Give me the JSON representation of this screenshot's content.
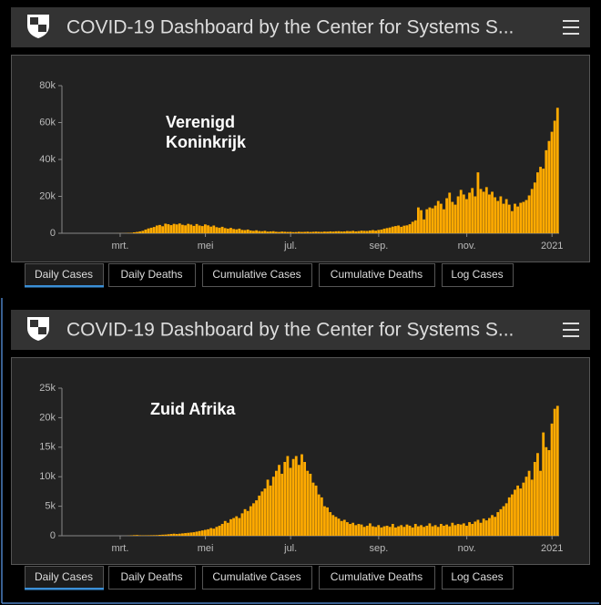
{
  "panels": [
    {
      "header": {
        "title": "COVID-19 Dashboard by the Center for Systems S..."
      },
      "tabs": [
        "Daily Cases",
        "Daily Deaths",
        "Cumulative Cases",
        "Cumulative Deaths",
        "Log Cases"
      ]
    },
    {
      "header": {
        "title": "COVID-19 Dashboard by the Center for Systems S..."
      },
      "tabs": [
        "Daily Cases",
        "Daily Deaths",
        "Cumulative Cases",
        "Cumulative Deaths",
        "Log Cases"
      ]
    }
  ],
  "chart_data": [
    {
      "type": "bar",
      "annotations": [
        "Verenigd",
        "Koninkrijk"
      ],
      "color": "#ffaa00",
      "ylim": [
        0,
        80000
      ],
      "yticks": [
        0,
        {
          "value": 20000,
          "label": "20k"
        },
        {
          "value": 40000,
          "label": "40k"
        },
        {
          "value": 60000,
          "label": "60k"
        },
        {
          "value": 80000,
          "label": "80k"
        }
      ],
      "categories": [
        null,
        null,
        null,
        null,
        null,
        null,
        null,
        null,
        null,
        null,
        null,
        null,
        null,
        null,
        null,
        null,
        null,
        null,
        null,
        null,
        "mrt.",
        null,
        null,
        null,
        null,
        null,
        null,
        null,
        null,
        null,
        null,
        null,
        null,
        null,
        null,
        null,
        null,
        null,
        null,
        null,
        null,
        null,
        null,
        null,
        null,
        null,
        null,
        null,
        null,
        null,
        "mei",
        null,
        null,
        null,
        null,
        null,
        null,
        null,
        null,
        null,
        null,
        null,
        null,
        null,
        null,
        null,
        null,
        null,
        null,
        null,
        null,
        null,
        null,
        null,
        null,
        null,
        null,
        null,
        null,
        null,
        "jul.",
        null,
        null,
        null,
        null,
        null,
        null,
        null,
        null,
        null,
        null,
        null,
        null,
        null,
        null,
        null,
        null,
        null,
        null,
        null,
        null,
        null,
        null,
        null,
        null,
        null,
        null,
        null,
        null,
        null,
        null,
        "sep.",
        null,
        null,
        null,
        null,
        null,
        null,
        null,
        null,
        null,
        null,
        null,
        null,
        null,
        null,
        null,
        null,
        null,
        null,
        null,
        null,
        null,
        null,
        null,
        null,
        null,
        null,
        null,
        null,
        null,
        null,
        "nov.",
        null,
        null,
        null,
        null,
        null,
        null,
        null,
        null,
        null,
        null,
        null,
        null,
        null,
        null,
        null,
        null,
        null,
        null,
        null,
        null,
        null,
        null,
        null,
        null,
        null,
        null,
        null,
        null,
        null,
        "2021",
        null,
        null
      ],
      "values": [
        0,
        0,
        0,
        0,
        0,
        0,
        0,
        0,
        0,
        0,
        0,
        0,
        0,
        0,
        0,
        0,
        0,
        2,
        10,
        20,
        30,
        50,
        80,
        150,
        250,
        500,
        700,
        1000,
        1300,
        2000,
        2600,
        3000,
        3400,
        4200,
        4500,
        3800,
        5200,
        4900,
        4400,
        5100,
        4800,
        5300,
        4600,
        4300,
        5100,
        4700,
        4000,
        5000,
        4200,
        3900,
        4800,
        4300,
        3600,
        4200,
        3300,
        3000,
        3500,
        2800,
        2500,
        2900,
        2300,
        2100,
        2500,
        1800,
        1700,
        2000,
        1500,
        1300,
        1600,
        1200,
        1100,
        1300,
        900,
        1000,
        1100,
        800,
        700,
        900,
        800,
        700,
        750,
        600,
        650,
        800,
        700,
        750,
        850,
        700,
        800,
        900,
        800,
        750,
        900,
        850,
        1000,
        900,
        1050,
        1100,
        950,
        1000,
        1200,
        1100,
        1300,
        1000,
        1150,
        1400,
        1300,
        1250,
        1500,
        1700,
        1400,
        1800,
        2000,
        2500,
        2800,
        3100,
        3600,
        3900,
        4200,
        3500,
        4100,
        4300,
        4900,
        6200,
        7000,
        14000,
        12500,
        7500,
        13000,
        14000,
        13500,
        15000,
        17500,
        16000,
        13000,
        19000,
        22000,
        17000,
        15500,
        20000,
        23500,
        21000,
        18500,
        22000,
        24500,
        20000,
        33000,
        24000,
        22500,
        25000,
        21000,
        22500,
        19500,
        17500,
        20000,
        16000,
        18500,
        15500,
        12000,
        16000,
        14500,
        16500,
        17000,
        18000,
        20500,
        24000,
        27500,
        33000,
        36000,
        35000,
        45000,
        50000,
        55000,
        61000,
        68000
      ]
    },
    {
      "type": "bar",
      "annotations": [
        "Zuid Afrika"
      ],
      "color": "#ffaa00",
      "ylim": [
        0,
        25000
      ],
      "yticks": [
        0,
        {
          "value": 5000,
          "label": "5k"
        },
        {
          "value": 10000,
          "label": "10k"
        },
        {
          "value": 15000,
          "label": "15k"
        },
        {
          "value": 20000,
          "label": "20k"
        },
        {
          "value": 25000,
          "label": "25k"
        }
      ],
      "categories": [
        null,
        null,
        null,
        null,
        null,
        null,
        null,
        null,
        null,
        null,
        null,
        null,
        null,
        null,
        null,
        null,
        null,
        null,
        null,
        null,
        "mrt.",
        null,
        null,
        null,
        null,
        null,
        null,
        null,
        null,
        null,
        null,
        null,
        null,
        null,
        null,
        null,
        null,
        null,
        null,
        null,
        null,
        null,
        null,
        null,
        null,
        null,
        null,
        null,
        null,
        null,
        "mei",
        null,
        null,
        null,
        null,
        null,
        null,
        null,
        null,
        null,
        null,
        null,
        null,
        null,
        null,
        null,
        null,
        null,
        null,
        null,
        null,
        null,
        null,
        null,
        null,
        null,
        null,
        null,
        null,
        null,
        "jul.",
        null,
        null,
        null,
        null,
        null,
        null,
        null,
        null,
        null,
        null,
        null,
        null,
        null,
        null,
        null,
        null,
        null,
        null,
        null,
        null,
        null,
        null,
        null,
        null,
        null,
        null,
        null,
        null,
        null,
        null,
        "sep.",
        null,
        null,
        null,
        null,
        null,
        null,
        null,
        null,
        null,
        null,
        null,
        null,
        null,
        null,
        null,
        null,
        null,
        null,
        null,
        null,
        null,
        null,
        null,
        null,
        null,
        null,
        null,
        null,
        null,
        null,
        "nov.",
        null,
        null,
        null,
        null,
        null,
        null,
        null,
        null,
        null,
        null,
        null,
        null,
        null,
        null,
        null,
        null,
        null,
        null,
        null,
        null,
        null,
        null,
        null,
        null,
        null,
        null,
        null,
        null,
        null,
        "2021",
        null,
        null
      ],
      "values": [
        0,
        0,
        0,
        0,
        0,
        0,
        0,
        0,
        0,
        0,
        0,
        0,
        0,
        0,
        0,
        0,
        0,
        0,
        0,
        0,
        0,
        0,
        5,
        20,
        60,
        100,
        120,
        80,
        60,
        70,
        80,
        90,
        100,
        110,
        150,
        180,
        200,
        250,
        300,
        350,
        300,
        350,
        400,
        450,
        500,
        550,
        600,
        700,
        800,
        900,
        1000,
        1100,
        1300,
        1200,
        1500,
        1700,
        2000,
        2500,
        2200,
        2800,
        3000,
        3300,
        3000,
        3800,
        4500,
        4200,
        5000,
        5500,
        6000,
        6800,
        7500,
        8000,
        9500,
        8500,
        10000,
        11000,
        12000,
        10500,
        12500,
        13500,
        11500,
        13000,
        13500,
        12000,
        13800,
        12500,
        11000,
        10500,
        9000,
        8500,
        7000,
        6500,
        5000,
        4800,
        4000,
        3500,
        3200,
        2900,
        2500,
        2700,
        2300,
        2000,
        2200,
        1800,
        2000,
        1900,
        1500,
        1700,
        2100,
        1600,
        1500,
        1800,
        1400,
        1600,
        1700,
        1500,
        2000,
        1400,
        1600,
        1800,
        1500,
        1900,
        1700,
        1400,
        2000,
        1600,
        1800,
        1500,
        1700,
        2100,
        1600,
        1800,
        1500,
        2000,
        1700,
        1900,
        1600,
        2200,
        1800,
        2000,
        1900,
        2100,
        1700,
        2300,
        2000,
        2400,
        2700,
        2200,
        2900,
        2600,
        3000,
        3500,
        3200,
        4000,
        4500,
        5000,
        5500,
        6500,
        7000,
        7800,
        8500,
        8000,
        9000,
        10000,
        11000,
        9500,
        12500,
        14000,
        11000,
        17500,
        15000,
        14500,
        19000,
        21500,
        22000
      ]
    }
  ]
}
